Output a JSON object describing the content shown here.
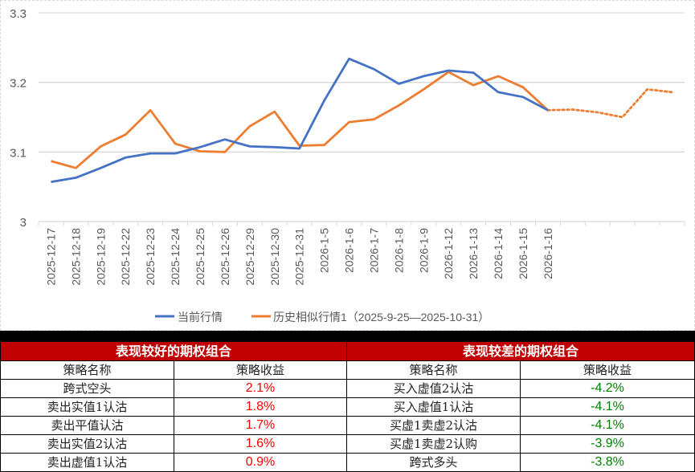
{
  "chart_data": {
    "type": "line",
    "title": "",
    "xlabel": "",
    "ylabel": "",
    "ylim": [
      3.0,
      3.3
    ],
    "yticks": [
      "3",
      "3.1",
      "3.2",
      "3.3"
    ],
    "grid": true,
    "legend_position": "bottom",
    "categories": [
      "2025-12-17",
      "2025-12-18",
      "2025-12-19",
      "2025-12-22",
      "2025-12-23",
      "2025-12-24",
      "2025-12-25",
      "2025-12-26",
      "2025-12-29",
      "2025-12-30",
      "2025-12-31",
      "2026-1-5",
      "2026-1-6",
      "2026-1-7",
      "2026-1-8",
      "2026-1-9",
      "2026-1-12",
      "2026-1-13",
      "2026-1-14",
      "2026-1-15",
      "2026-1-16",
      "",
      "",
      "",
      "",
      ""
    ],
    "series": [
      {
        "name": "当前行情",
        "color": "#4472c4",
        "style": "solid",
        "values": [
          3.057,
          3.063,
          3.077,
          3.092,
          3.098,
          3.098,
          3.107,
          3.118,
          3.108,
          3.107,
          3.105,
          3.174,
          3.234,
          3.219,
          3.198,
          3.209,
          3.217,
          3.214,
          3.186,
          3.179,
          3.16
        ]
      },
      {
        "name": "历史相似行情1（2025-9-25—2025-10-31）",
        "color": "#ed7d31",
        "style": "solid then dotted after index 20",
        "values": [
          3.087,
          3.077,
          3.108,
          3.125,
          3.16,
          3.112,
          3.101,
          3.1,
          3.137,
          3.158,
          3.109,
          3.11,
          3.143,
          3.147,
          3.167,
          3.19,
          3.215,
          3.196,
          3.209,
          3.193,
          3.16,
          3.161,
          3.157,
          3.15,
          3.19,
          3.186
        ]
      }
    ]
  },
  "legend": {
    "current": "当前行情",
    "history": "历史相似行情1（2025-9-25—2025-10-31）"
  },
  "tables": {
    "good": {
      "title": "表现较好的期权组合",
      "col_name": "策略名称",
      "col_return": "策略收益",
      "rows": [
        {
          "name": "跨式空头",
          "return": "2.1%"
        },
        {
          "name": "卖出实值1认沽",
          "return": "1.8%"
        },
        {
          "name": "卖出平值认沽",
          "return": "1.7%"
        },
        {
          "name": "卖出实值2认沽",
          "return": "1.6%"
        },
        {
          "name": "卖出虚值1认沽",
          "return": "0.9%"
        }
      ]
    },
    "bad": {
      "title": "表现较差的期权组合",
      "col_name": "策略名称",
      "col_return": "策略收益",
      "rows": [
        {
          "name": "买入虚值2认沽",
          "return": "-4.2%"
        },
        {
          "name": "买入虚值1认沽",
          "return": "-4.1%"
        },
        {
          "name": "买虚1卖虚2认沽",
          "return": "-4.1%"
        },
        {
          "name": "买虚1卖虚2认购",
          "return": "-3.9%"
        },
        {
          "name": "跨式多头",
          "return": "-3.8%"
        }
      ]
    }
  },
  "colors": {
    "current": "#4472c4",
    "history": "#ed7d31",
    "header_bg": "#c00000",
    "positive": "#ff0000",
    "negative": "#008000"
  }
}
